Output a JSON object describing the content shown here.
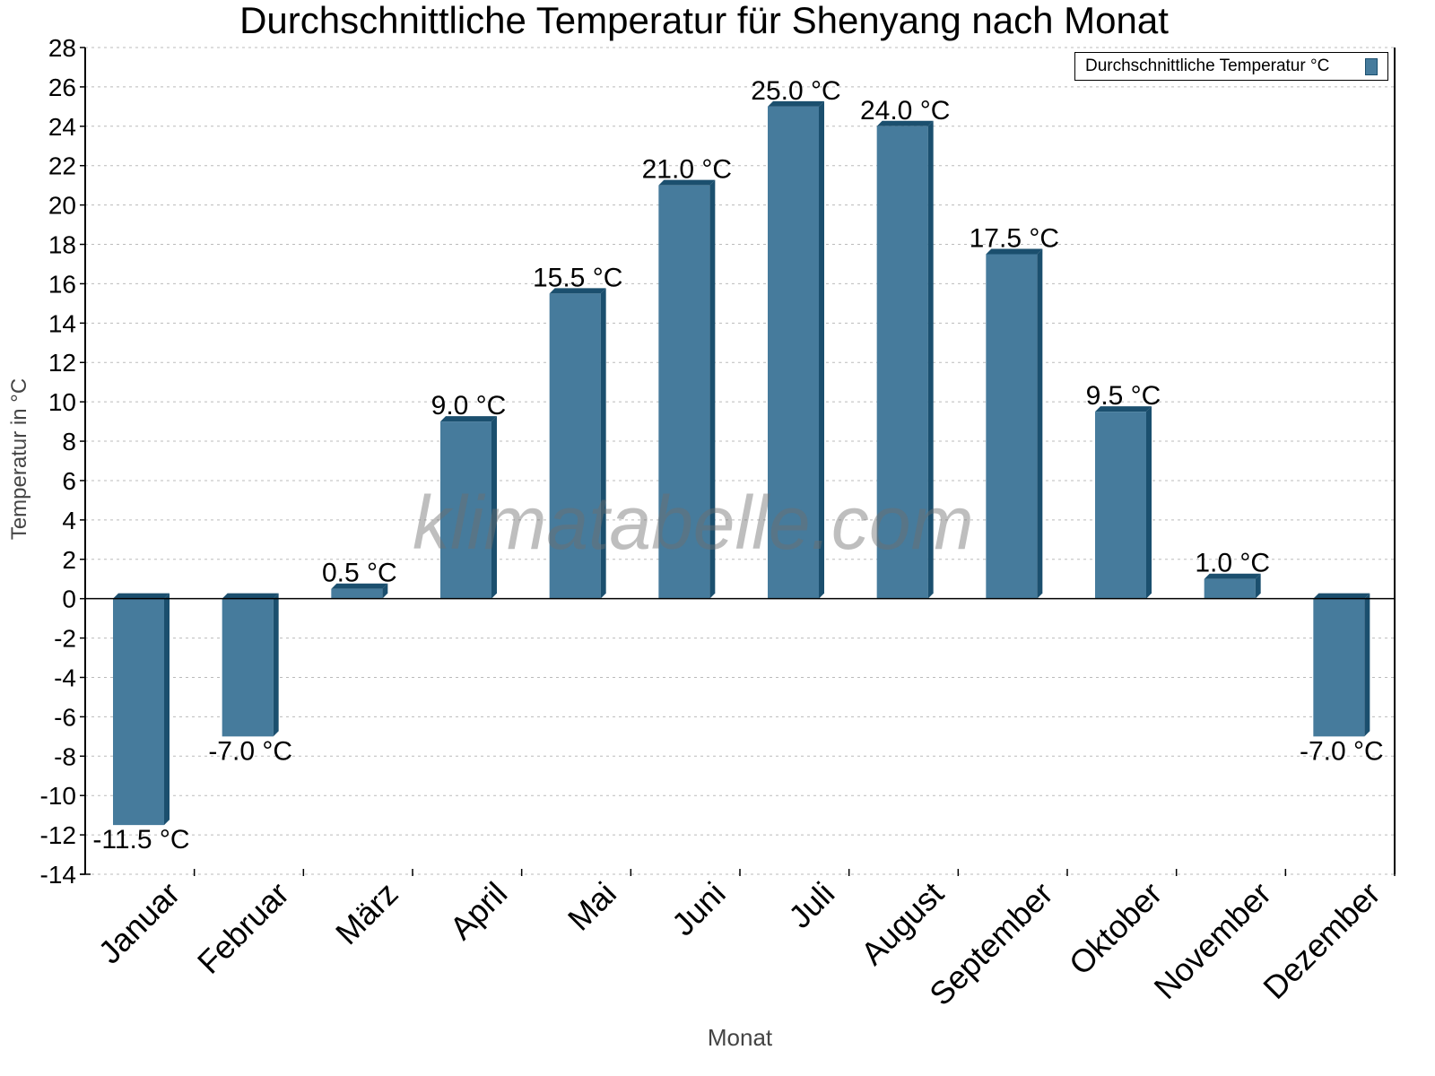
{
  "chart_data": {
    "type": "bar",
    "title": "Durchschnittliche Temperatur für Shenyang nach Monat",
    "xlabel": "Monat",
    "ylabel": "Temperatur in °C",
    "categories": [
      "Januar",
      "Februar",
      "März",
      "April",
      "Mai",
      "Juni",
      "Juli",
      "August",
      "September",
      "Oktober",
      "November",
      "Dezember"
    ],
    "series": [
      {
        "name": "Durchschnittliche Temperatur °C",
        "values": [
          -11.5,
          -7.0,
          0.5,
          9.0,
          15.5,
          21.0,
          25.0,
          24.0,
          17.5,
          9.5,
          1.0,
          -7.0
        ],
        "labels": [
          "-11.5 °C",
          "-7.0 °C",
          "0.5 °C",
          "9.0 °C",
          "15.5 °C",
          "21.0 °C",
          "25.0 °C",
          "24.0 °C",
          "17.5 °C",
          "9.5 °C",
          "1.0 °C",
          "-7.0 °C"
        ],
        "color": "#467b9c",
        "side_color": "#1b4f6e"
      }
    ],
    "ylim": [
      -14,
      28
    ],
    "yticks": [
      28,
      26,
      24,
      22,
      20,
      18,
      16,
      14,
      12,
      10,
      8,
      6,
      4,
      2,
      0,
      -2,
      -4,
      -6,
      -8,
      -10,
      -12,
      -14
    ],
    "grid": true,
    "legend_position": "top-right",
    "watermark": "klimatabelle.com"
  }
}
